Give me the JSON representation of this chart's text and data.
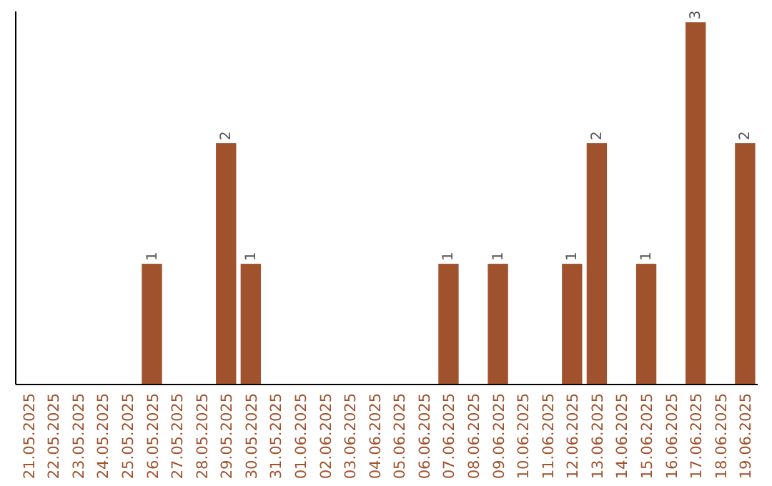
{
  "chart_data": {
    "type": "bar",
    "categories": [
      "21.05.2025",
      "22.05.2025",
      "23.05.2025",
      "24.05.2025",
      "25.05.2025",
      "26.05.2025",
      "27.05.2025",
      "28.05.2025",
      "29.05.2025",
      "30.05.2025",
      "31.05.2025",
      "01.06.2025",
      "02.06.2025",
      "03.06.2025",
      "04.06.2025",
      "05.06.2025",
      "06.06.2025",
      "07.06.2025",
      "08.06.2025",
      "09.06.2025",
      "10.06.2025",
      "11.06.2025",
      "12.06.2025",
      "13.06.2025",
      "14.06.2025",
      "15.06.2025",
      "16.06.2025",
      "17.06.2025",
      "18.06.2025",
      "19.06.2025"
    ],
    "values": [
      0,
      0,
      0,
      0,
      0,
      1,
      0,
      0,
      2,
      1,
      0,
      0,
      0,
      0,
      0,
      0,
      0,
      1,
      0,
      1,
      0,
      0,
      1,
      2,
      0,
      1,
      0,
      3,
      0,
      2
    ],
    "value_labels": [
      null,
      null,
      null,
      null,
      null,
      "1",
      null,
      null,
      "2",
      "1",
      null,
      null,
      null,
      null,
      null,
      null,
      null,
      "1",
      null,
      "1",
      null,
      null,
      "1",
      "2",
      null,
      "1",
      null,
      "3",
      null,
      "2"
    ],
    "color": "#a0522d"
  }
}
